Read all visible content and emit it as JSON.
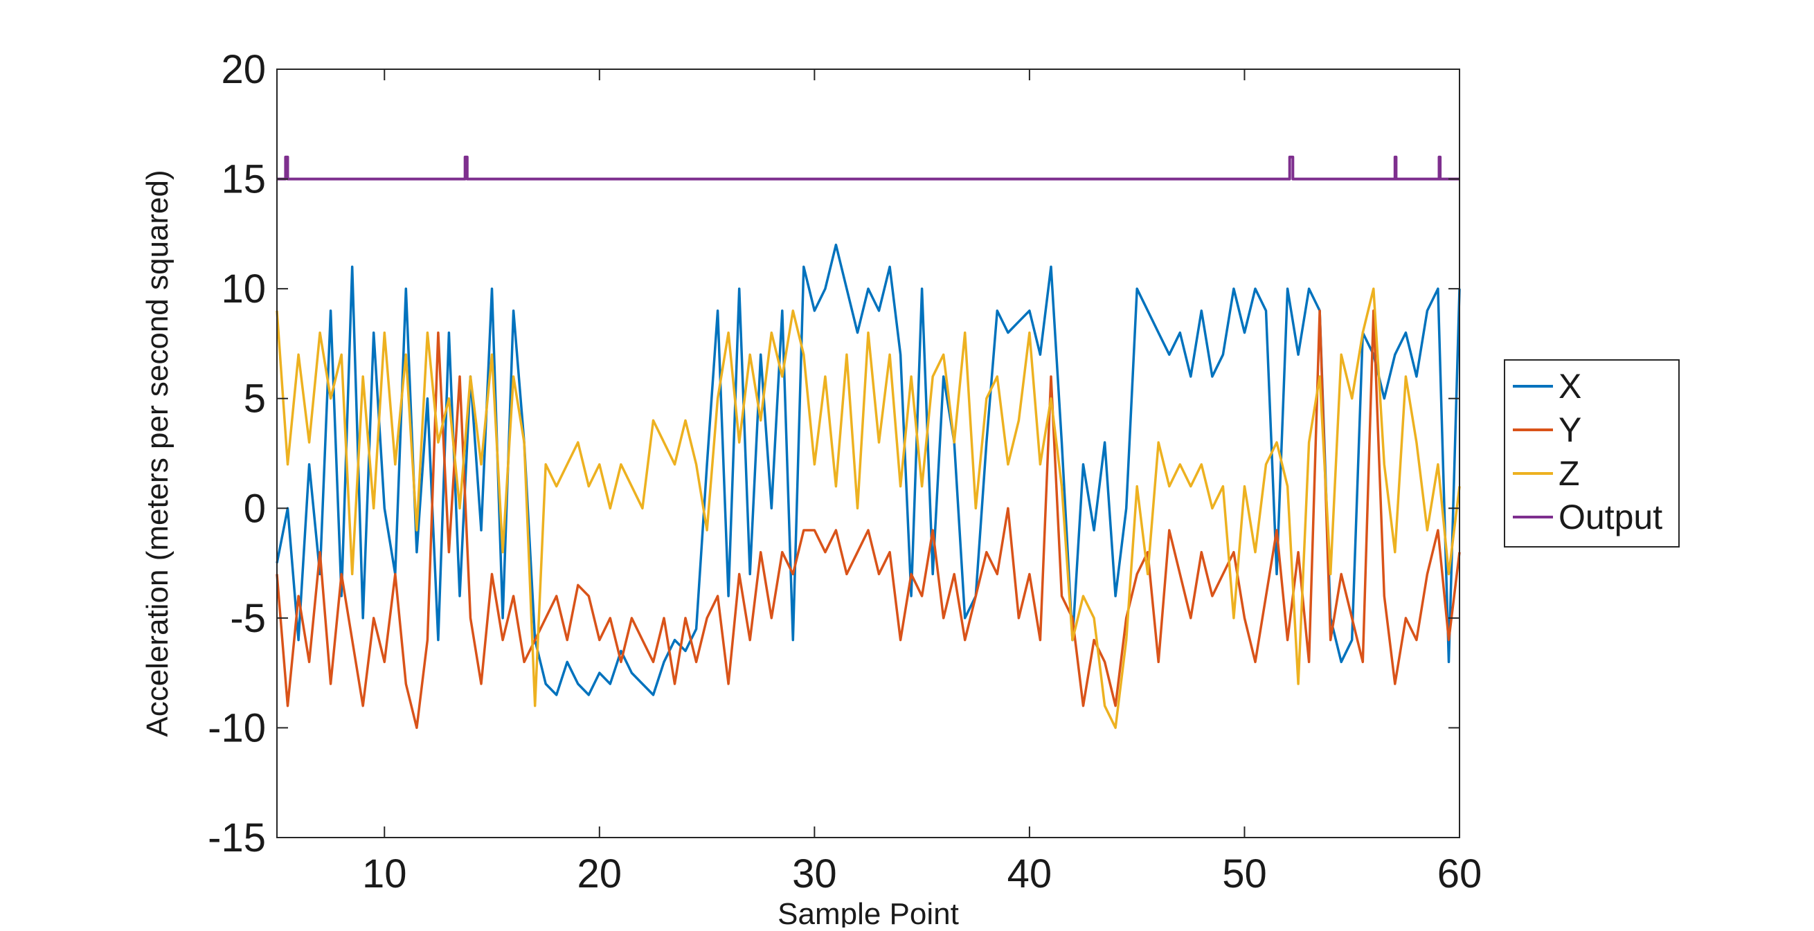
{
  "chart_data": {
    "type": "line",
    "xlabel": "Sample Point",
    "ylabel": "Acceleration (meters per second squared)",
    "xlim": [
      5,
      60
    ],
    "ylim": [
      -15,
      20
    ],
    "xticks": [
      10,
      20,
      30,
      40,
      50,
      60
    ],
    "yticks": [
      20,
      15,
      10,
      5,
      0,
      -5,
      -10,
      -15
    ],
    "grid": false,
    "legend_position": "right, outside plot",
    "colors": {
      "X": "#0072BD",
      "Y": "#D95319",
      "Z": "#EDB120",
      "Output": "#7E2F8E"
    },
    "series": [
      {
        "name": "X",
        "x": [
          5,
          5.5,
          6,
          6.5,
          7,
          7.5,
          8,
          8.5,
          9,
          9.5,
          10,
          10.5,
          11,
          11.5,
          12,
          12.5,
          13,
          13.5,
          14,
          14.5,
          15,
          15.5,
          16,
          16.5,
          17,
          17.5,
          18,
          18.5,
          19,
          19.5,
          20,
          20.5,
          21,
          21.5,
          22,
          22.5,
          23,
          23.5,
          24,
          24.5,
          25,
          25.5,
          26,
          26.5,
          27,
          27.5,
          28,
          28.5,
          29,
          29.5,
          30,
          30.5,
          31,
          31.5,
          32,
          32.5,
          33,
          33.5,
          34,
          34.5,
          35,
          35.5,
          36,
          36.5,
          37,
          37.5,
          38,
          38.5,
          39,
          39.5,
          40,
          40.5,
          41,
          41.5,
          42,
          42.5,
          43,
          43.5,
          44,
          44.5,
          45,
          45.5,
          46,
          46.5,
          47,
          47.5,
          48,
          48.5,
          49,
          49.5,
          50,
          50.5,
          51,
          51.5,
          52,
          52.5,
          53,
          53.5,
          54,
          54.5,
          55,
          55.5,
          56,
          56.5,
          57,
          57.5,
          58,
          58.5,
          59,
          59.5,
          60
        ],
        "values": [
          -2.5,
          0,
          -6,
          2,
          -3,
          9,
          -4,
          11,
          -5,
          8,
          0,
          -3,
          10,
          -2,
          5,
          -6,
          8,
          -4,
          6,
          -1,
          10,
          -5,
          9,
          3,
          -6,
          -8,
          -8.5,
          -7,
          -8,
          -8.5,
          -7.5,
          -8,
          -6.5,
          -7.5,
          -8,
          -8.5,
          -7,
          -6,
          -6.5,
          -5.5,
          2,
          9,
          -4,
          10,
          -3,
          7,
          0,
          9,
          -6,
          11,
          9,
          10,
          12,
          10,
          8,
          10,
          9,
          11,
          7,
          -4,
          10,
          -3,
          6,
          3,
          -5,
          -4,
          3,
          9,
          8,
          8.5,
          9,
          7,
          11,
          3,
          -6,
          2,
          -1,
          3,
          -4,
          0,
          10,
          9,
          8,
          7,
          8,
          6,
          9,
          6,
          7,
          10,
          8,
          10,
          9,
          -3,
          10,
          7,
          10,
          9,
          -5,
          -7,
          -6,
          8,
          7,
          5,
          7,
          8,
          6,
          9,
          10,
          -7,
          10
        ]
      },
      {
        "name": "Y",
        "x": [
          5,
          5.5,
          6,
          6.5,
          7,
          7.5,
          8,
          8.5,
          9,
          9.5,
          10,
          10.5,
          11,
          11.5,
          12,
          12.5,
          13,
          13.5,
          14,
          14.5,
          15,
          15.5,
          16,
          16.5,
          17,
          17.5,
          18,
          18.5,
          19,
          19.5,
          20,
          20.5,
          21,
          21.5,
          22,
          22.5,
          23,
          23.5,
          24,
          24.5,
          25,
          25.5,
          26,
          26.5,
          27,
          27.5,
          28,
          28.5,
          29,
          29.5,
          30,
          30.5,
          31,
          31.5,
          32,
          32.5,
          33,
          33.5,
          34,
          34.5,
          35,
          35.5,
          36,
          36.5,
          37,
          37.5,
          38,
          38.5,
          39,
          39.5,
          40,
          40.5,
          41,
          41.5,
          42,
          42.5,
          43,
          43.5,
          44,
          44.5,
          45,
          45.5,
          46,
          46.5,
          47,
          47.5,
          48,
          48.5,
          49,
          49.5,
          50,
          50.5,
          51,
          51.5,
          52,
          52.5,
          53,
          53.5,
          54,
          54.5,
          55,
          55.5,
          56,
          56.5,
          57,
          57.5,
          58,
          58.5,
          59,
          59.5,
          60
        ],
        "values": [
          -3,
          -9,
          -4,
          -7,
          -2,
          -8,
          -3,
          -6,
          -9,
          -5,
          -7,
          -3,
          -8,
          -10,
          -6,
          8,
          -2,
          6,
          -5,
          -8,
          -3,
          -6,
          -4,
          -7,
          -6,
          -5,
          -4,
          -6,
          -3.5,
          -4,
          -6,
          -5,
          -7,
          -5,
          -6,
          -7,
          -5,
          -8,
          -5,
          -7,
          -5,
          -4,
          -8,
          -3,
          -6,
          -2,
          -5,
          -2,
          -3,
          -1,
          -1,
          -2,
          -1,
          -3,
          -2,
          -1,
          -3,
          -2,
          -6,
          -3,
          -4,
          -1,
          -5,
          -3,
          -6,
          -4,
          -2,
          -3,
          0,
          -5,
          -3,
          -6,
          6,
          -4,
          -5,
          -9,
          -6,
          -7,
          -9,
          -5,
          -3,
          -2,
          -7,
          -1,
          -3,
          -5,
          -2,
          -4,
          -3,
          -2,
          -5,
          -7,
          -4,
          -1,
          -6,
          -2,
          -7,
          9,
          -6,
          -3,
          -5,
          -7,
          9,
          -4,
          -8,
          -5,
          -6,
          -3,
          -1,
          -6,
          -2
        ]
      },
      {
        "name": "Z",
        "x": [
          5,
          5.5,
          6,
          6.5,
          7,
          7.5,
          8,
          8.5,
          9,
          9.5,
          10,
          10.5,
          11,
          11.5,
          12,
          12.5,
          13,
          13.5,
          14,
          14.5,
          15,
          15.5,
          16,
          16.5,
          17,
          17.5,
          18,
          18.5,
          19,
          19.5,
          20,
          20.5,
          21,
          21.5,
          22,
          22.5,
          23,
          23.5,
          24,
          24.5,
          25,
          25.5,
          26,
          26.5,
          27,
          27.5,
          28,
          28.5,
          29,
          29.5,
          30,
          30.5,
          31,
          31.5,
          32,
          32.5,
          33,
          33.5,
          34,
          34.5,
          35,
          35.5,
          36,
          36.5,
          37,
          37.5,
          38,
          38.5,
          39,
          39.5,
          40,
          40.5,
          41,
          41.5,
          42,
          42.5,
          43,
          43.5,
          44,
          44.5,
          45,
          45.5,
          46,
          46.5,
          47,
          47.5,
          48,
          48.5,
          49,
          49.5,
          50,
          50.5,
          51,
          51.5,
          52,
          52.5,
          53,
          53.5,
          54,
          54.5,
          55,
          55.5,
          56,
          56.5,
          57,
          57.5,
          58,
          58.5,
          59,
          59.5,
          60
        ],
        "values": [
          9,
          2,
          7,
          3,
          8,
          5,
          7,
          -3,
          6,
          0,
          8,
          2,
          7,
          -1,
          8,
          3,
          5,
          0,
          6,
          2,
          7,
          -2,
          6,
          3,
          -9,
          2,
          1,
          2,
          3,
          1,
          2,
          0,
          2,
          1,
          0,
          4,
          3,
          2,
          4,
          2,
          -1,
          5,
          8,
          3,
          7,
          4,
          8,
          6,
          9,
          7,
          2,
          6,
          1,
          7,
          0,
          8,
          3,
          7,
          1,
          6,
          1,
          6,
          7,
          3,
          8,
          0,
          5,
          6,
          2,
          4,
          8,
          2,
          5,
          1,
          -6,
          -4,
          -5,
          -9,
          -10,
          -6,
          1,
          -3,
          3,
          1,
          2,
          1,
          2,
          0,
          1,
          -5,
          1,
          -2,
          2,
          3,
          1,
          -8,
          3,
          6,
          -3,
          7,
          5,
          8,
          10,
          2,
          -2,
          6,
          3,
          -1,
          2,
          -3,
          1
        ]
      },
      {
        "name": "Output",
        "x": [
          5,
          5.4,
          5.4,
          5.5,
          5.5,
          13.75,
          13.75,
          13.85,
          13.85,
          52.1,
          52.1,
          52.25,
          52.25,
          57,
          57,
          57.05,
          57.05,
          59.05,
          59.05,
          59.1,
          59.1,
          60
        ],
        "values": [
          15,
          15,
          16,
          16,
          15,
          15,
          16,
          16,
          15,
          15,
          16,
          16,
          15,
          15,
          16,
          16,
          15,
          15,
          16,
          16,
          15,
          15
        ]
      }
    ]
  }
}
